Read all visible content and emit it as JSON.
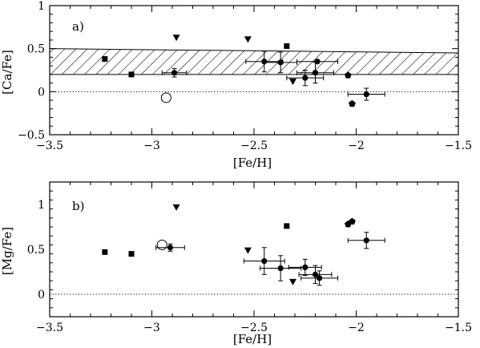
{
  "chart_data": [
    {
      "type": "scatter",
      "panel_label": "a)",
      "xlabel": "[Fe/H]",
      "ylabel": "[Ca/Fe]",
      "xlim": [
        -3.5,
        -1.5
      ],
      "ylim": [
        -0.5,
        1.0
      ],
      "xticks": [
        -3.5,
        -3.0,
        -2.5,
        -2.0,
        -1.5
      ],
      "xtick_labels": [
        "−3.5",
        "−3",
        "−2.5",
        "−2",
        "−1.5"
      ],
      "yticks": [
        -0.5,
        0.0,
        0.5,
        1.0
      ],
      "ytick_labels": [
        "−0.5",
        "0",
        "0.5",
        "1"
      ],
      "reference_line_y": 0.0,
      "hatched_band": {
        "x0": -3.5,
        "x1": -1.5,
        "y_left": [
          0.2,
          0.5
        ],
        "y_right": [
          0.2,
          0.45
        ]
      },
      "series": [
        {
          "marker": "square",
          "points": [
            [
              -3.23,
              0.38
            ],
            [
              -3.1,
              0.2
            ],
            [
              -2.34,
              0.53
            ]
          ]
        },
        {
          "marker": "triangle-down",
          "points": [
            [
              -2.88,
              0.63
            ],
            [
              -2.53,
              0.61
            ],
            [
              -2.31,
              0.12
            ]
          ]
        },
        {
          "marker": "pentagon",
          "points": [
            [
              -2.04,
              0.19
            ],
            [
              -2.02,
              -0.14
            ]
          ]
        },
        {
          "marker": "open-circle",
          "points": [
            [
              -2.93,
              -0.07
            ]
          ]
        },
        {
          "marker": "filled-circle-errorbar",
          "points": [
            {
              "x": -2.89,
              "y": 0.22,
              "xerr": 0.06,
              "yerr": 0.05
            },
            {
              "x": -2.45,
              "y": 0.35,
              "xerr": 0.09,
              "yerr": 0.12
            },
            {
              "x": -2.37,
              "y": 0.34,
              "xerr": 0.08,
              "yerr": 0.12
            },
            {
              "x": -2.25,
              "y": 0.16,
              "xerr": 0.09,
              "yerr": 0.09
            },
            {
              "x": -2.2,
              "y": 0.22,
              "xerr": 0.09,
              "yerr": 0.12
            },
            {
              "x": -2.19,
              "y": 0.35,
              "xerr": 0.1,
              "yerr": 0.0
            },
            {
              "x": -1.95,
              "y": -0.03,
              "xerr": 0.09,
              "yerr": 0.07
            }
          ]
        }
      ]
    },
    {
      "type": "scatter",
      "panel_label": "b)",
      "xlabel": "[Fe/H]",
      "ylabel": "[Mg/Fe]",
      "xlim": [
        -3.5,
        -1.5
      ],
      "ylim": [
        -0.25,
        1.25
      ],
      "xticks": [
        -3.5,
        -3.0,
        -2.5,
        -2.0,
        -1.5
      ],
      "xtick_labels": [
        "−3.5",
        "−3",
        "−2.5",
        "−2",
        "−1.5"
      ],
      "yticks": [
        0.0,
        0.5,
        1.0
      ],
      "ytick_labels": [
        "0",
        "0.5",
        "1"
      ],
      "reference_line_y": 0.0,
      "series": [
        {
          "marker": "square",
          "points": [
            [
              -3.23,
              0.47
            ],
            [
              -3.1,
              0.45
            ],
            [
              -2.34,
              0.76
            ]
          ]
        },
        {
          "marker": "triangle-down",
          "points": [
            [
              -2.88,
              0.97
            ],
            [
              -2.53,
              0.49
            ],
            [
              -2.31,
              0.14
            ]
          ]
        },
        {
          "marker": "pentagon",
          "points": [
            [
              -2.04,
              0.78
            ],
            [
              -2.02,
              0.81
            ]
          ]
        },
        {
          "marker": "open-circle",
          "points": [
            [
              -2.95,
              0.55
            ]
          ]
        },
        {
          "marker": "filled-circle-errorbar",
          "points": [
            {
              "x": -2.91,
              "y": 0.52,
              "xerr": 0.07,
              "yerr": 0.04
            },
            {
              "x": -2.45,
              "y": 0.37,
              "xerr": 0.1,
              "yerr": 0.15
            },
            {
              "x": -2.37,
              "y": 0.29,
              "xerr": 0.1,
              "yerr": 0.14
            },
            {
              "x": -2.25,
              "y": 0.3,
              "xerr": 0.08,
              "yerr": 0.09
            },
            {
              "x": -2.2,
              "y": 0.22,
              "xerr": 0.08,
              "yerr": 0.1
            },
            {
              "x": -2.18,
              "y": 0.18,
              "xerr": 0.09,
              "yerr": 0.08
            },
            {
              "x": -1.95,
              "y": 0.6,
              "xerr": 0.09,
              "yerr": 0.09
            }
          ]
        }
      ]
    }
  ]
}
